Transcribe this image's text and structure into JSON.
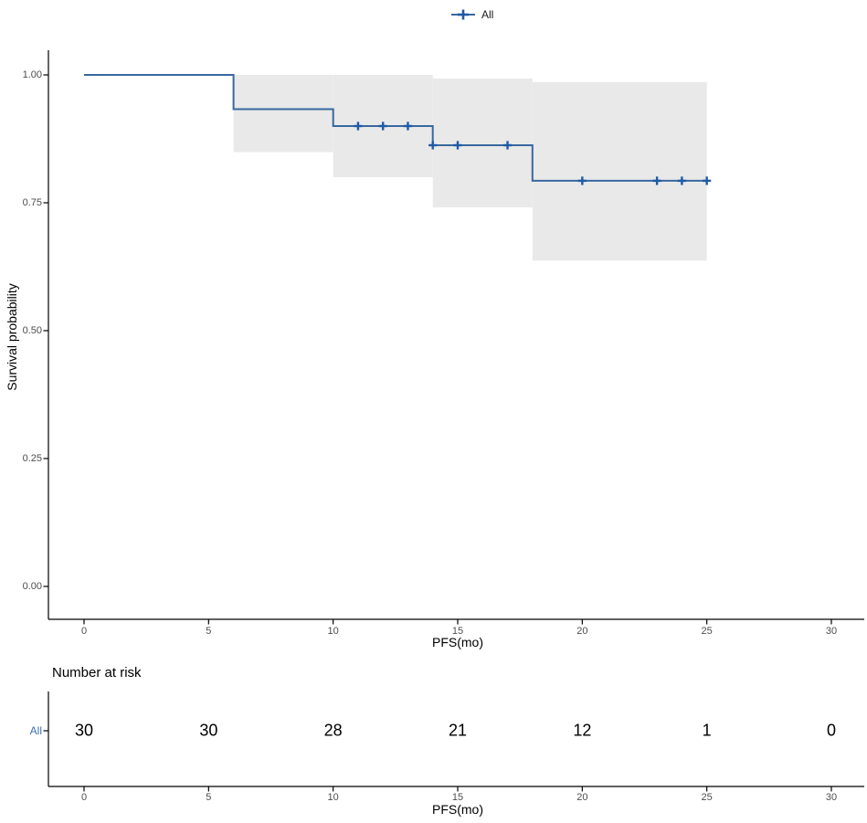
{
  "figure": {
    "legend": {
      "items": [
        {
          "label": "All",
          "marker": "censor-plus"
        }
      ]
    },
    "y_axis": {
      "title": "Survival probability",
      "tick_labels": [
        "0.00",
        "0.25",
        "0.50",
        "0.75",
        "1.00"
      ],
      "tick_values": [
        0,
        0.25,
        0.5,
        0.75,
        1.0
      ]
    },
    "x_axis": {
      "title": "PFS(mo)",
      "ticks": [
        0,
        5,
        10,
        15,
        20,
        25,
        30
      ]
    },
    "risk_table": {
      "title": "Number at risk",
      "rows": [
        {
          "label": "All",
          "counts": [
            30,
            30,
            28,
            21,
            12,
            1,
            0
          ]
        }
      ],
      "x_axis": {
        "title": "PFS(mo)",
        "ticks": [
          0,
          5,
          10,
          15,
          20,
          25,
          30
        ]
      }
    }
  },
  "chart_data": {
    "type": "line",
    "subtype": "kaplan-meier-step-curve",
    "title": "",
    "xlabel": "PFS(mo)",
    "ylabel": "Survival probability",
    "xlim": [
      0,
      30
    ],
    "ylim": [
      0,
      1
    ],
    "grid": false,
    "legend_position": "top-center",
    "series": [
      {
        "name": "All",
        "steps": [
          [
            0,
            1.0
          ],
          [
            6,
            1.0
          ],
          [
            6,
            0.933
          ],
          [
            10,
            0.933
          ],
          [
            10,
            0.9
          ],
          [
            14,
            0.9
          ],
          [
            14,
            0.8625
          ],
          [
            18,
            0.8625
          ],
          [
            18,
            0.793
          ],
          [
            25,
            0.793
          ]
        ],
        "censor_marks": [
          [
            11,
            0.9
          ],
          [
            12,
            0.9
          ],
          [
            13,
            0.9
          ],
          [
            14,
            0.8625
          ],
          [
            15,
            0.8625
          ],
          [
            17,
            0.8625
          ],
          [
            20,
            0.793
          ],
          [
            23,
            0.793
          ],
          [
            24,
            0.793
          ],
          [
            25,
            0.793
          ]
        ],
        "confidence_band_segments": [
          {
            "t0": 6,
            "t1": 10,
            "lower": 0.849,
            "upper": 1.0
          },
          {
            "t0": 10,
            "t1": 14,
            "lower": 0.8,
            "upper": 1.0
          },
          {
            "t0": 14,
            "t1": 18,
            "lower": 0.741,
            "upper": 0.993
          },
          {
            "t0": 18,
            "t1": 25,
            "lower": 0.637,
            "upper": 0.986
          }
        ]
      }
    ],
    "number_at_risk": {
      "times": [
        0,
        5,
        10,
        15,
        20,
        25,
        30
      ],
      "series": [
        {
          "name": "All",
          "counts": [
            30,
            30,
            28,
            21,
            12,
            1,
            0
          ]
        }
      ]
    }
  },
  "colors": {
    "curve": "#39689f",
    "censor": "#1e5aa5",
    "confidence_band": "#e9e9e9",
    "axis_line": "#000000",
    "tick_text": "#4d4d4d",
    "risk_row_label": "#3c6fb4",
    "legend_text": "#1a1a1a"
  }
}
